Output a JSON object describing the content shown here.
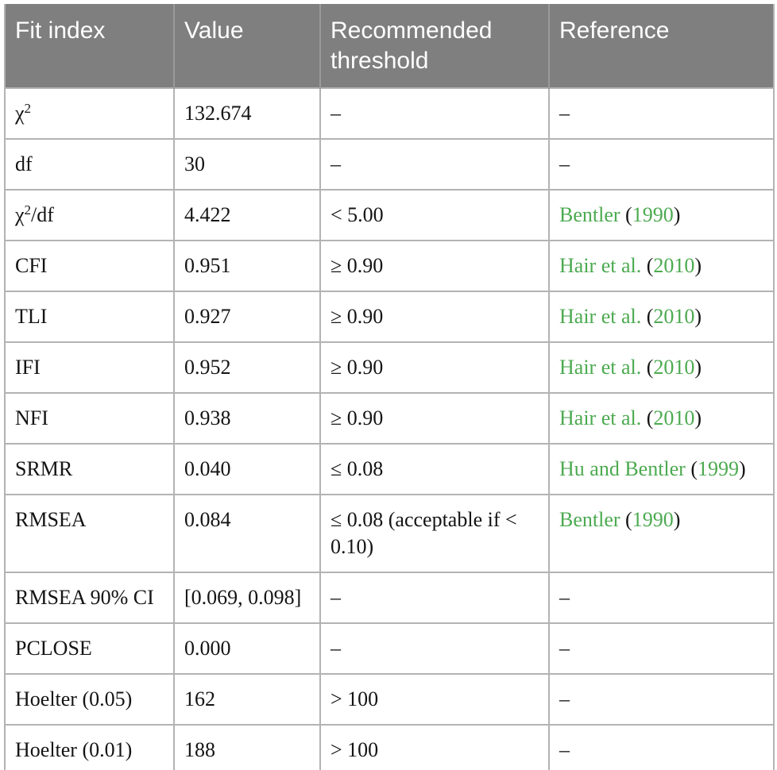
{
  "table": {
    "title_semantic": "model-fit-indices-table",
    "headers": [
      "Fit index",
      "Value",
      "Recommended threshold",
      "Reference"
    ],
    "empty_marker": "–",
    "colors": {
      "header_bg": "#7f7f7f",
      "header_text": "#ffffff",
      "link_green": "#4caa50",
      "border_gray": "#b3b3b3",
      "bottom_bar": "#b7b7b7"
    },
    "rows": [
      {
        "index": {
          "pre": "χ",
          "sup": "2",
          "post": ""
        },
        "value": "132.674",
        "threshold": "–",
        "reference": [
          {
            "t": "–",
            "link": false
          }
        ]
      },
      {
        "index": {
          "pre": "df"
        },
        "value": "30",
        "threshold": "–",
        "reference": [
          {
            "t": "–",
            "link": false
          }
        ]
      },
      {
        "index": {
          "pre": "χ",
          "sup": "2",
          "post": "/df"
        },
        "value": "4.422",
        "threshold": "< 5.00",
        "reference": [
          {
            "t": "Bentler",
            "link": true
          },
          {
            "t": " (",
            "link": false
          },
          {
            "t": "1990",
            "link": true
          },
          {
            "t": ")",
            "link": false
          }
        ]
      },
      {
        "index": {
          "pre": "CFI"
        },
        "value": "0.951",
        "threshold": "≥ 0.90",
        "reference": [
          {
            "t": "Hair et al.",
            "link": true
          },
          {
            "t": " (",
            "link": false
          },
          {
            "t": "2010",
            "link": true
          },
          {
            "t": ")",
            "link": false
          }
        ]
      },
      {
        "index": {
          "pre": "TLI"
        },
        "value": "0.927",
        "threshold": "≥ 0.90",
        "reference": [
          {
            "t": "Hair et al.",
            "link": true
          },
          {
            "t": " (",
            "link": false
          },
          {
            "t": "2010",
            "link": true
          },
          {
            "t": ")",
            "link": false
          }
        ]
      },
      {
        "index": {
          "pre": "IFI"
        },
        "value": "0.952",
        "threshold": "≥ 0.90",
        "reference": [
          {
            "t": "Hair et al.",
            "link": true
          },
          {
            "t": " (",
            "link": false
          },
          {
            "t": "2010",
            "link": true
          },
          {
            "t": ")",
            "link": false
          }
        ]
      },
      {
        "index": {
          "pre": "NFI"
        },
        "value": "0.938",
        "threshold": "≥ 0.90",
        "reference": [
          {
            "t": "Hair et al.",
            "link": true
          },
          {
            "t": " (",
            "link": false
          },
          {
            "t": "2010",
            "link": true
          },
          {
            "t": ")",
            "link": false
          }
        ]
      },
      {
        "index": {
          "pre": "SRMR"
        },
        "value": "0.040",
        "threshold": "≤ 0.08",
        "reference": [
          {
            "t": "Hu and Bentler",
            "link": true
          },
          {
            "t": " (",
            "link": false
          },
          {
            "t": "1999",
            "link": true
          },
          {
            "t": ")",
            "link": false
          }
        ]
      },
      {
        "index": {
          "pre": "RMSEA"
        },
        "value": "0.084",
        "threshold": "≤ 0.08 (acceptable if < 0.10)",
        "reference": [
          {
            "t": "Bentler",
            "link": true
          },
          {
            "t": " (",
            "link": false
          },
          {
            "t": "1990",
            "link": true
          },
          {
            "t": ")",
            "link": false
          }
        ]
      },
      {
        "index": {
          "pre": "RMSEA 90% CI"
        },
        "value": "[0.069, 0.098]",
        "threshold": "–",
        "reference": [
          {
            "t": "–",
            "link": false
          }
        ]
      },
      {
        "index": {
          "pre": "PCLOSE"
        },
        "value": "0.000",
        "threshold": "–",
        "reference": [
          {
            "t": "–",
            "link": false
          }
        ]
      },
      {
        "index": {
          "pre": "Hoelter (0.05)"
        },
        "value": "162",
        "threshold": "> 100",
        "reference": [
          {
            "t": "–",
            "link": false
          }
        ]
      },
      {
        "index": {
          "pre": "Hoelter (0.01)"
        },
        "value": "188",
        "threshold": "> 100",
        "reference": [
          {
            "t": "–",
            "link": false
          }
        ]
      }
    ]
  }
}
